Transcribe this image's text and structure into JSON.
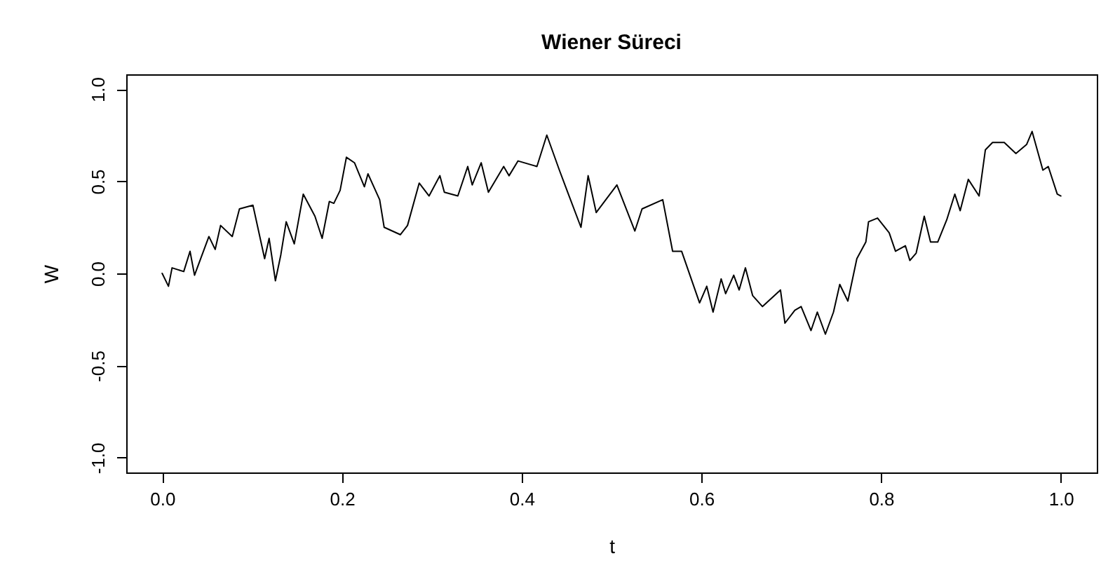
{
  "chart_data": {
    "type": "line",
    "title": "Wiener Süreci",
    "xlabel": "t",
    "ylabel": "W",
    "x": [
      0,
      0.007,
      0.011,
      0.024,
      0.031,
      0.036,
      0.052,
      0.059,
      0.065,
      0.078,
      0.086,
      0.101,
      0.114,
      0.119,
      0.126,
      0.132,
      0.138,
      0.147,
      0.157,
      0.17,
      0.178,
      0.186,
      0.191,
      0.198,
      0.205,
      0.214,
      0.225,
      0.229,
      0.242,
      0.247,
      0.265,
      0.273,
      0.286,
      0.297,
      0.309,
      0.314,
      0.329,
      0.34,
      0.345,
      0.355,
      0.363,
      0.38,
      0.386,
      0.396,
      0.417,
      0.428,
      0.442,
      0.452,
      0.466,
      0.474,
      0.483,
      0.506,
      0.526,
      0.534,
      0.557,
      0.568,
      0.578,
      0.598,
      0.606,
      0.613,
      0.622,
      0.627,
      0.636,
      0.642,
      0.649,
      0.657,
      0.668,
      0.688,
      0.693,
      0.704,
      0.711,
      0.722,
      0.729,
      0.738,
      0.747,
      0.754,
      0.763,
      0.773,
      0.783,
      0.786,
      0.796,
      0.809,
      0.816,
      0.827,
      0.832,
      0.839,
      0.848,
      0.855,
      0.863,
      0.873,
      0.882,
      0.888,
      0.897,
      0.909,
      0.916,
      0.924,
      0.937,
      0.95,
      0.962,
      0.968,
      0.98,
      0.986,
      0.996,
      1.0
    ],
    "series": [
      {
        "color": "#000000",
        "values": [
          0,
          -0.07,
          0.03,
          0.01,
          0.12,
          -0.01,
          0.2,
          0.13,
          0.26,
          0.2,
          0.35,
          0.37,
          0.08,
          0.19,
          -0.04,
          0.1,
          0.28,
          0.16,
          0.43,
          0.31,
          0.19,
          0.39,
          0.38,
          0.45,
          0.63,
          0.6,
          0.47,
          0.54,
          0.4,
          0.25,
          0.21,
          0.26,
          0.49,
          0.42,
          0.53,
          0.44,
          0.42,
          0.58,
          0.48,
          0.6,
          0.44,
          0.58,
          0.53,
          0.61,
          0.58,
          0.75,
          0.56,
          0.43,
          0.25,
          0.53,
          0.33,
          0.48,
          0.23,
          0.35,
          0.4,
          0.12,
          0.12,
          -0.16,
          -0.07,
          -0.21,
          -0.03,
          -0.11,
          -0.01,
          -0.09,
          0.03,
          -0.12,
          -0.18,
          -0.09,
          -0.27,
          -0.2,
          -0.18,
          -0.31,
          -0.21,
          -0.33,
          -0.21,
          -0.06,
          -0.15,
          0.08,
          0.17,
          0.28,
          0.3,
          0.22,
          0.12,
          0.15,
          0.07,
          0.11,
          0.31,
          0.17,
          0.17,
          0.29,
          0.43,
          0.34,
          0.51,
          0.42,
          0.67,
          0.71,
          0.71,
          0.65,
          0.7,
          0.77,
          0.56,
          0.58,
          0.43,
          0.42
        ]
      }
    ],
    "xlim": [
      -0.04,
      1.04
    ],
    "ylim": [
      -1.08,
      1.08
    ],
    "xticks": [
      {
        "value": 0,
        "label": "0.0"
      },
      {
        "value": 0.2,
        "label": "0.2"
      },
      {
        "value": 0.4,
        "label": "0.4"
      },
      {
        "value": 0.6,
        "label": "0.6"
      },
      {
        "value": 0.8,
        "label": "0.8"
      },
      {
        "value": 1,
        "label": "1.0"
      }
    ],
    "yticks": [
      {
        "value": -1,
        "label": "-1.0"
      },
      {
        "value": -0.5,
        "label": "-0.5"
      },
      {
        "value": 0,
        "label": "0.0"
      },
      {
        "value": 0.5,
        "label": "0.5"
      },
      {
        "value": 1,
        "label": "1.0"
      }
    ],
    "grid": false,
    "marker": "none",
    "line_style": "solid"
  }
}
